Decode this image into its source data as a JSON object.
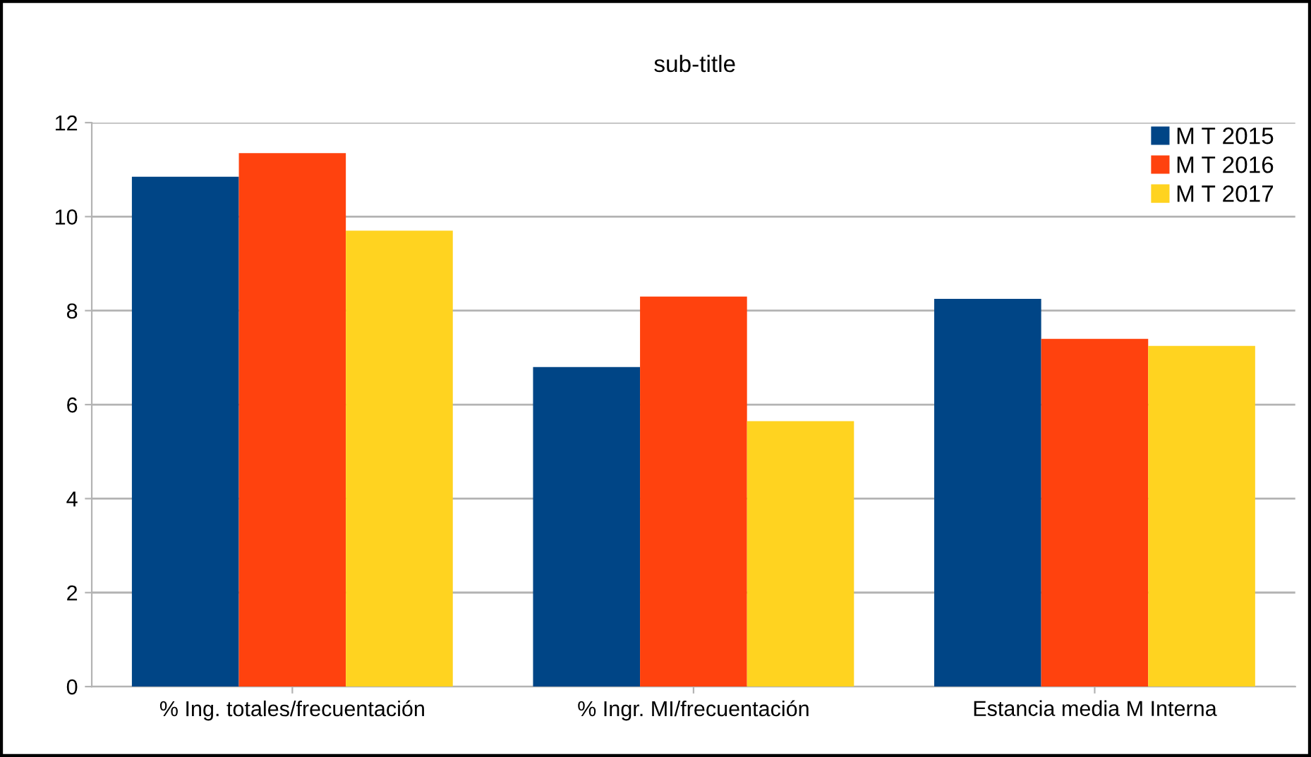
{
  "chart_data": {
    "type": "bar",
    "title": "sub-title",
    "categories": [
      "% Ing. totales/frecuentación",
      "% Ingr. MI/frecuentación",
      "Estancia media M Interna"
    ],
    "series": [
      {
        "name": "M T 2015",
        "color": "#004586",
        "values": [
          10.85,
          6.8,
          8.25
        ]
      },
      {
        "name": "M T 2016",
        "color": "#ff420e",
        "values": [
          11.35,
          8.3,
          7.4
        ]
      },
      {
        "name": "M T 2017",
        "color": "#ffd320",
        "values": [
          9.7,
          5.65,
          7.25
        ]
      }
    ],
    "ylim": [
      0,
      12
    ],
    "yticks": [
      0,
      2,
      4,
      6,
      8,
      10,
      12
    ],
    "grid": "y",
    "legend": "top right"
  }
}
